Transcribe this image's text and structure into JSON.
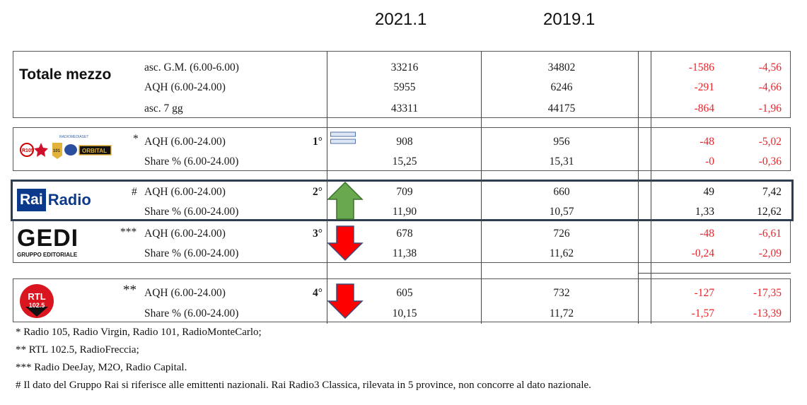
{
  "headers": {
    "col1": "2021.1",
    "col2": "2019.1"
  },
  "totale": {
    "label": "Totale mezzo",
    "rows": [
      {
        "metric": "asc. G.M. (6.00-6.00)",
        "v2021": "33216",
        "v2019": "34802",
        "diff": "-1586",
        "pct": "-4,56"
      },
      {
        "metric": "AQH (6.00-24.00)",
        "v2021": "5955",
        "v2019": "6246",
        "diff": "-291",
        "pct": "-4,66"
      },
      {
        "metric": "asc. 7 gg",
        "v2021": "43311",
        "v2019": "44175",
        "diff": "-864",
        "pct": "-1,96"
      }
    ]
  },
  "groups": [
    {
      "name": "mediaset",
      "logo_text": "RADIOMEDIASET",
      "marker": "*",
      "rank": "1°",
      "trend": "equal",
      "rows": [
        {
          "metric": "AQH (6.00-24.00)",
          "v2021": "908",
          "v2019": "956",
          "diff": "-48",
          "pct": "-5,02"
        },
        {
          "metric": "Share % (6.00-24.00)",
          "v2021": "15,25",
          "v2019": "15,31",
          "diff": "-0",
          "pct": "-0,36"
        }
      ]
    },
    {
      "name": "rai",
      "logo_text": "Rai",
      "logo_text2": "Radio",
      "marker": "#",
      "rank": "2°",
      "trend": "up",
      "rows": [
        {
          "metric": "AQH (6.00-24.00)",
          "v2021": "709",
          "v2019": "660",
          "diff": "49",
          "pct": "7,42"
        },
        {
          "metric": "Share % (6.00-24.00)",
          "v2021": "11,90",
          "v2019": "10,57",
          "diff": "1,33",
          "pct": "12,62"
        }
      ]
    },
    {
      "name": "gedi",
      "logo_text": "GEDI",
      "logo_sub": "GRUPPO EDITORIALE",
      "marker": "***",
      "rank": "3°",
      "trend": "down",
      "rows": [
        {
          "metric": "AQH (6.00-24.00)",
          "v2021": "678",
          "v2019": "726",
          "diff": "-48",
          "pct": "-6,61"
        },
        {
          "metric": "Share % (6.00-24.00)",
          "v2021": "11,38",
          "v2019": "11,62",
          "diff": "-0,24",
          "pct": "-2,09"
        }
      ]
    },
    {
      "name": "rtl",
      "logo_text": "RTL",
      "logo_sub": "102.5",
      "marker": "**",
      "rank": "4°",
      "trend": "down",
      "rows": [
        {
          "metric": "AQH (6.00-24.00)",
          "v2021": "605",
          "v2019": "732",
          "diff": "-127",
          "pct": "-17,35"
        },
        {
          "metric": "Share % (6.00-24.00)",
          "v2021": "10,15",
          "v2019": "11,72",
          "diff": "-1,57",
          "pct": "-13,39"
        }
      ]
    }
  ],
  "colors": {
    "negative": "#e8242b",
    "up_arrow": "#6aa84f",
    "down_arrow": "#ff0000",
    "rai_blue": "#0b3a8c",
    "rai_border": "#2c3e50"
  },
  "footnotes": [
    "*  Radio 105, Radio Virgin, Radio 101, RadioMonteCarlo;",
    "**  RTL 102.5, RadioFreccia;",
    "***  Radio DeeJay, M2O, Radio Capital.",
    "# Il dato del Gruppo Rai si riferisce alle emittenti nazionali. Rai Radio3 Classica, rilevata in 5 province, non concorre al dato nazionale."
  ]
}
